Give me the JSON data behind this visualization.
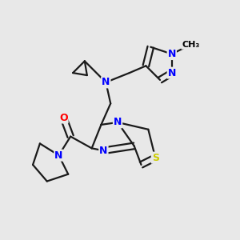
{
  "bg_color": "#e8e8e8",
  "atom_colors": {
    "N": "#0000ff",
    "S": "#cccc00",
    "O": "#ff0000",
    "C": "#000000"
  },
  "bond_color": "#1a1a1a",
  "bond_width": 1.6,
  "font_size_atom": 9,
  "font_size_methyl": 8
}
